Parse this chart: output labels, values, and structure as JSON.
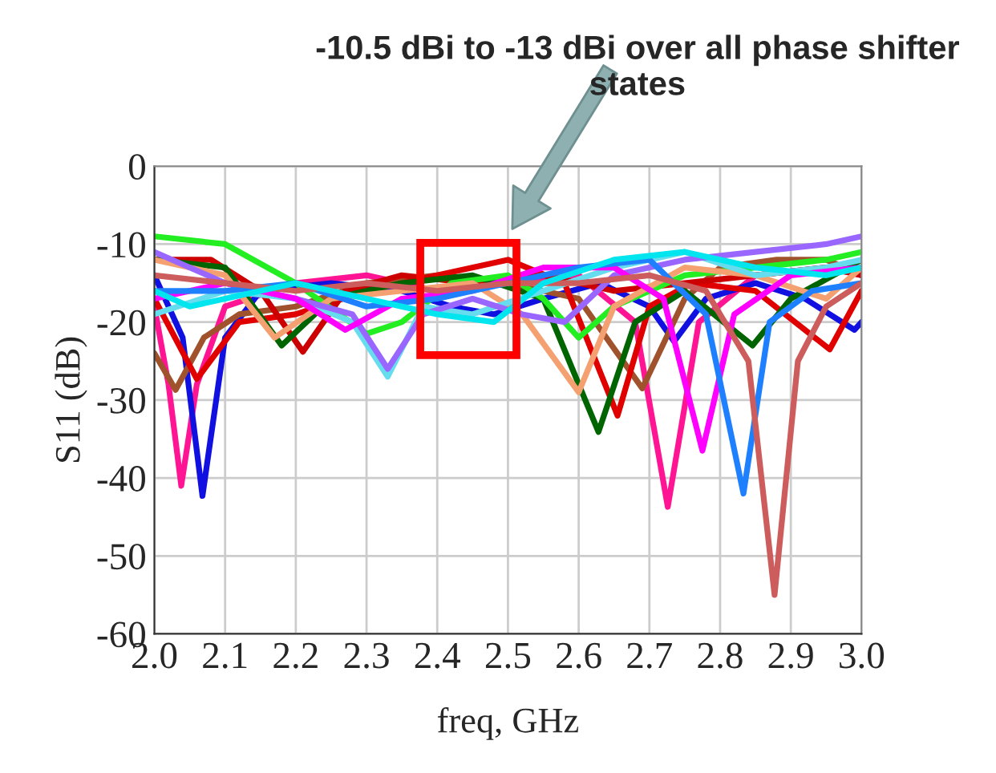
{
  "chart_data": {
    "type": "line",
    "xlabel": "freq, GHz",
    "ylabel": "S11 (dB)",
    "xlim": [
      2.0,
      3.0
    ],
    "xticks": [
      {
        "value": 2.0,
        "label": "2.0"
      },
      2.1,
      2.2,
      2.3,
      2.4,
      2.5,
      2.6,
      2.7,
      2.8,
      2.9,
      {
        "value": 3.0,
        "label": "3.0"
      }
    ],
    "ylim": [
      -60,
      0
    ],
    "yticks": [
      -60,
      -50,
      -40,
      -30,
      -20,
      -10,
      0
    ],
    "grid": true,
    "line_style": "solid",
    "marker": "none",
    "annotations": [
      "-10.5 dBi to -13 dBi over all phase shifter states"
    ],
    "series": [
      {
        "color": "#ff1493",
        "x": [
          2.0,
          2.02,
          2.038,
          2.06,
          2.1,
          2.2,
          2.3,
          2.4,
          2.5,
          2.6,
          2.68,
          2.726,
          2.77,
          2.85,
          2.95,
          3.0
        ],
        "values": [
          -18,
          -28,
          -41,
          -28,
          -18,
          -15,
          -14,
          -16,
          -15,
          -14,
          -20,
          -43.7,
          -20,
          -14,
          -13,
          -14
        ]
      },
      {
        "color": "#1010e0",
        "x": [
          2.0,
          2.04,
          2.068,
          2.1,
          2.15,
          2.25,
          2.35,
          2.42,
          2.48,
          2.55,
          2.63,
          2.7,
          2.735,
          2.78,
          2.85,
          2.92,
          2.99,
          3.0
        ],
        "values": [
          -14,
          -22,
          -42.3,
          -22,
          -16,
          -15,
          -16,
          -18,
          -19,
          -17,
          -15,
          -18,
          -22.5,
          -17,
          -15,
          -17,
          -21,
          -20
        ]
      },
      {
        "color": "#a0522d",
        "x": [
          2.0,
          2.03,
          2.07,
          2.12,
          2.2,
          2.3,
          2.4,
          2.5,
          2.6,
          2.69,
          2.75,
          2.8,
          2.88,
          2.95,
          3.0
        ],
        "values": [
          -24,
          -28.7,
          -22,
          -19,
          -18,
          -15,
          -14,
          -15,
          -17,
          -28.5,
          -17,
          -13,
          -12,
          -12,
          -14
        ]
      },
      {
        "color": "#e00000",
        "x": [
          2.0,
          2.06,
          2.12,
          2.2,
          2.3,
          2.4,
          2.5,
          2.58,
          2.655,
          2.7,
          2.76,
          2.85,
          2.955,
          3.0
        ],
        "values": [
          -17,
          -27.3,
          -20,
          -19,
          -16,
          -14,
          -12,
          -15,
          -32,
          -18,
          -15,
          -16,
          -23.5,
          -16
        ]
      },
      {
        "color": "#cc0000",
        "x": [
          2.0,
          2.08,
          2.15,
          2.21,
          2.27,
          2.35,
          2.45,
          2.55,
          2.65,
          2.75,
          2.85,
          2.95,
          3.0
        ],
        "values": [
          -12,
          -12,
          -16,
          -23.8,
          -16,
          -14,
          -15,
          -14,
          -16,
          -15,
          -14,
          -13,
          -14
        ]
      },
      {
        "color": "#006400",
        "x": [
          2.0,
          2.1,
          2.18,
          2.25,
          2.35,
          2.45,
          2.55,
          2.628,
          2.68,
          2.75,
          2.846,
          2.9,
          3.0
        ],
        "values": [
          -12,
          -13,
          -23,
          -17,
          -15,
          -14,
          -17,
          -34.1,
          -20,
          -16,
          -23,
          -17,
          -12
        ]
      },
      {
        "color": "#22ee22",
        "x": [
          2.0,
          2.1,
          2.2,
          2.3,
          2.35,
          2.42,
          2.5,
          2.55,
          2.6,
          2.65,
          2.75,
          2.85,
          2.95,
          3.0
        ],
        "values": [
          -9,
          -10,
          -15,
          -21.5,
          -20,
          -15,
          -14,
          -17,
          -22,
          -18,
          -14,
          -13,
          -12,
          -11
        ]
      },
      {
        "color": "#f4a070",
        "x": [
          2.0,
          2.1,
          2.17,
          2.25,
          2.35,
          2.45,
          2.52,
          2.6,
          2.65,
          2.75,
          2.85,
          2.95,
          3.0
        ],
        "values": [
          -12,
          -14,
          -22,
          -17,
          -16,
          -15,
          -19,
          -29,
          -18,
          -13,
          -14,
          -17,
          -13
        ]
      },
      {
        "color": "#66ddee",
        "x": [
          2.0,
          2.1,
          2.2,
          2.28,
          2.33,
          2.38,
          2.45,
          2.55,
          2.65,
          2.75,
          2.85,
          2.95,
          3.0
        ],
        "values": [
          -19,
          -16,
          -17,
          -20,
          -27,
          -18,
          -19,
          -16,
          -13,
          -11,
          -14,
          -13,
          -12
        ]
      },
      {
        "color": "#9966ff",
        "x": [
          2.0,
          2.1,
          2.2,
          2.28,
          2.33,
          2.38,
          2.45,
          2.52,
          2.58,
          2.65,
          2.75,
          2.85,
          2.95,
          3.0
        ],
        "values": [
          -11,
          -15,
          -17,
          -19,
          -26,
          -19,
          -17,
          -19,
          -20,
          -14,
          -12,
          -11,
          -10,
          -9
        ]
      },
      {
        "color": "#ff00ff",
        "x": [
          2.0,
          2.1,
          2.2,
          2.27,
          2.35,
          2.45,
          2.55,
          2.65,
          2.72,
          2.775,
          2.82,
          2.9,
          3.0
        ],
        "values": [
          -17,
          -15,
          -17,
          -21,
          -17,
          -16,
          -13,
          -13,
          -17,
          -36.5,
          -19,
          -14,
          -13
        ]
      },
      {
        "color": "#1e80ff",
        "x": [
          2.0,
          2.1,
          2.2,
          2.3,
          2.4,
          2.5,
          2.6,
          2.7,
          2.78,
          2.833,
          2.87,
          2.93,
          3.0
        ],
        "values": [
          -16,
          -16,
          -15,
          -18,
          -17,
          -15,
          -13,
          -12,
          -19,
          -42,
          -20,
          -16,
          -15
        ]
      },
      {
        "color": "#cd5c5c",
        "x": [
          2.0,
          2.1,
          2.2,
          2.3,
          2.4,
          2.5,
          2.6,
          2.7,
          2.78,
          2.84,
          2.877,
          2.91,
          2.95,
          3.0
        ],
        "values": [
          -14,
          -15,
          -16,
          -15,
          -16,
          -15,
          -15,
          -14,
          -16,
          -25,
          -55,
          -25,
          -18,
          -15
        ]
      },
      {
        "color": "#00e5ee",
        "x": [
          2.0,
          2.05,
          2.1,
          2.2,
          2.3,
          2.4,
          2.48,
          2.55,
          2.65,
          2.75,
          2.85,
          2.95,
          3.0
        ],
        "values": [
          -16,
          -18,
          -17,
          -15,
          -17,
          -19,
          -20,
          -15,
          -12,
          -11,
          -13,
          -14,
          -13
        ]
      }
    ]
  }
}
